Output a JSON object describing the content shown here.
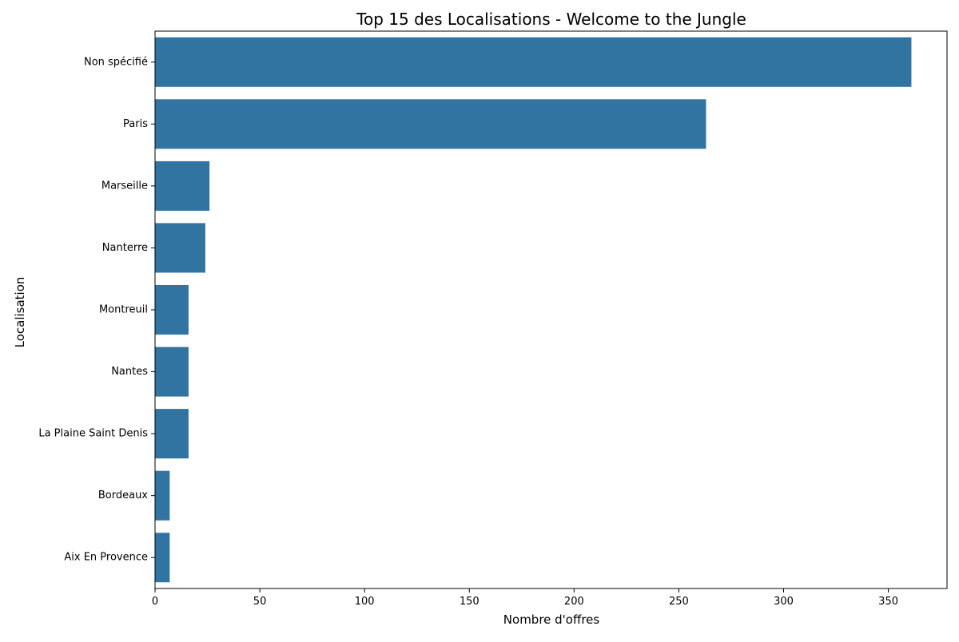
{
  "chart_data": {
    "type": "bar",
    "orientation": "horizontal",
    "title": "Top 15 des Localisations - Welcome to the Jungle",
    "xlabel": "Nombre d'offres",
    "ylabel": "Localisation",
    "categories": [
      "Non spécifié",
      "Paris",
      "Marseille",
      "Nanterre",
      "Montreuil",
      "Nantes",
      "La Plaine Saint Denis",
      "Bordeaux",
      "Aix En Provence"
    ],
    "values": [
      361,
      263,
      26,
      24,
      16,
      16,
      16,
      7,
      7
    ],
    "xlim": [
      0,
      378
    ],
    "xticks": [
      "0",
      "50",
      "100",
      "150",
      "200",
      "250",
      "300",
      "350"
    ],
    "grid": false,
    "legend": false,
    "colors": {
      "bar": "#3274a1",
      "axis": "#000000",
      "text": "#000000"
    }
  }
}
